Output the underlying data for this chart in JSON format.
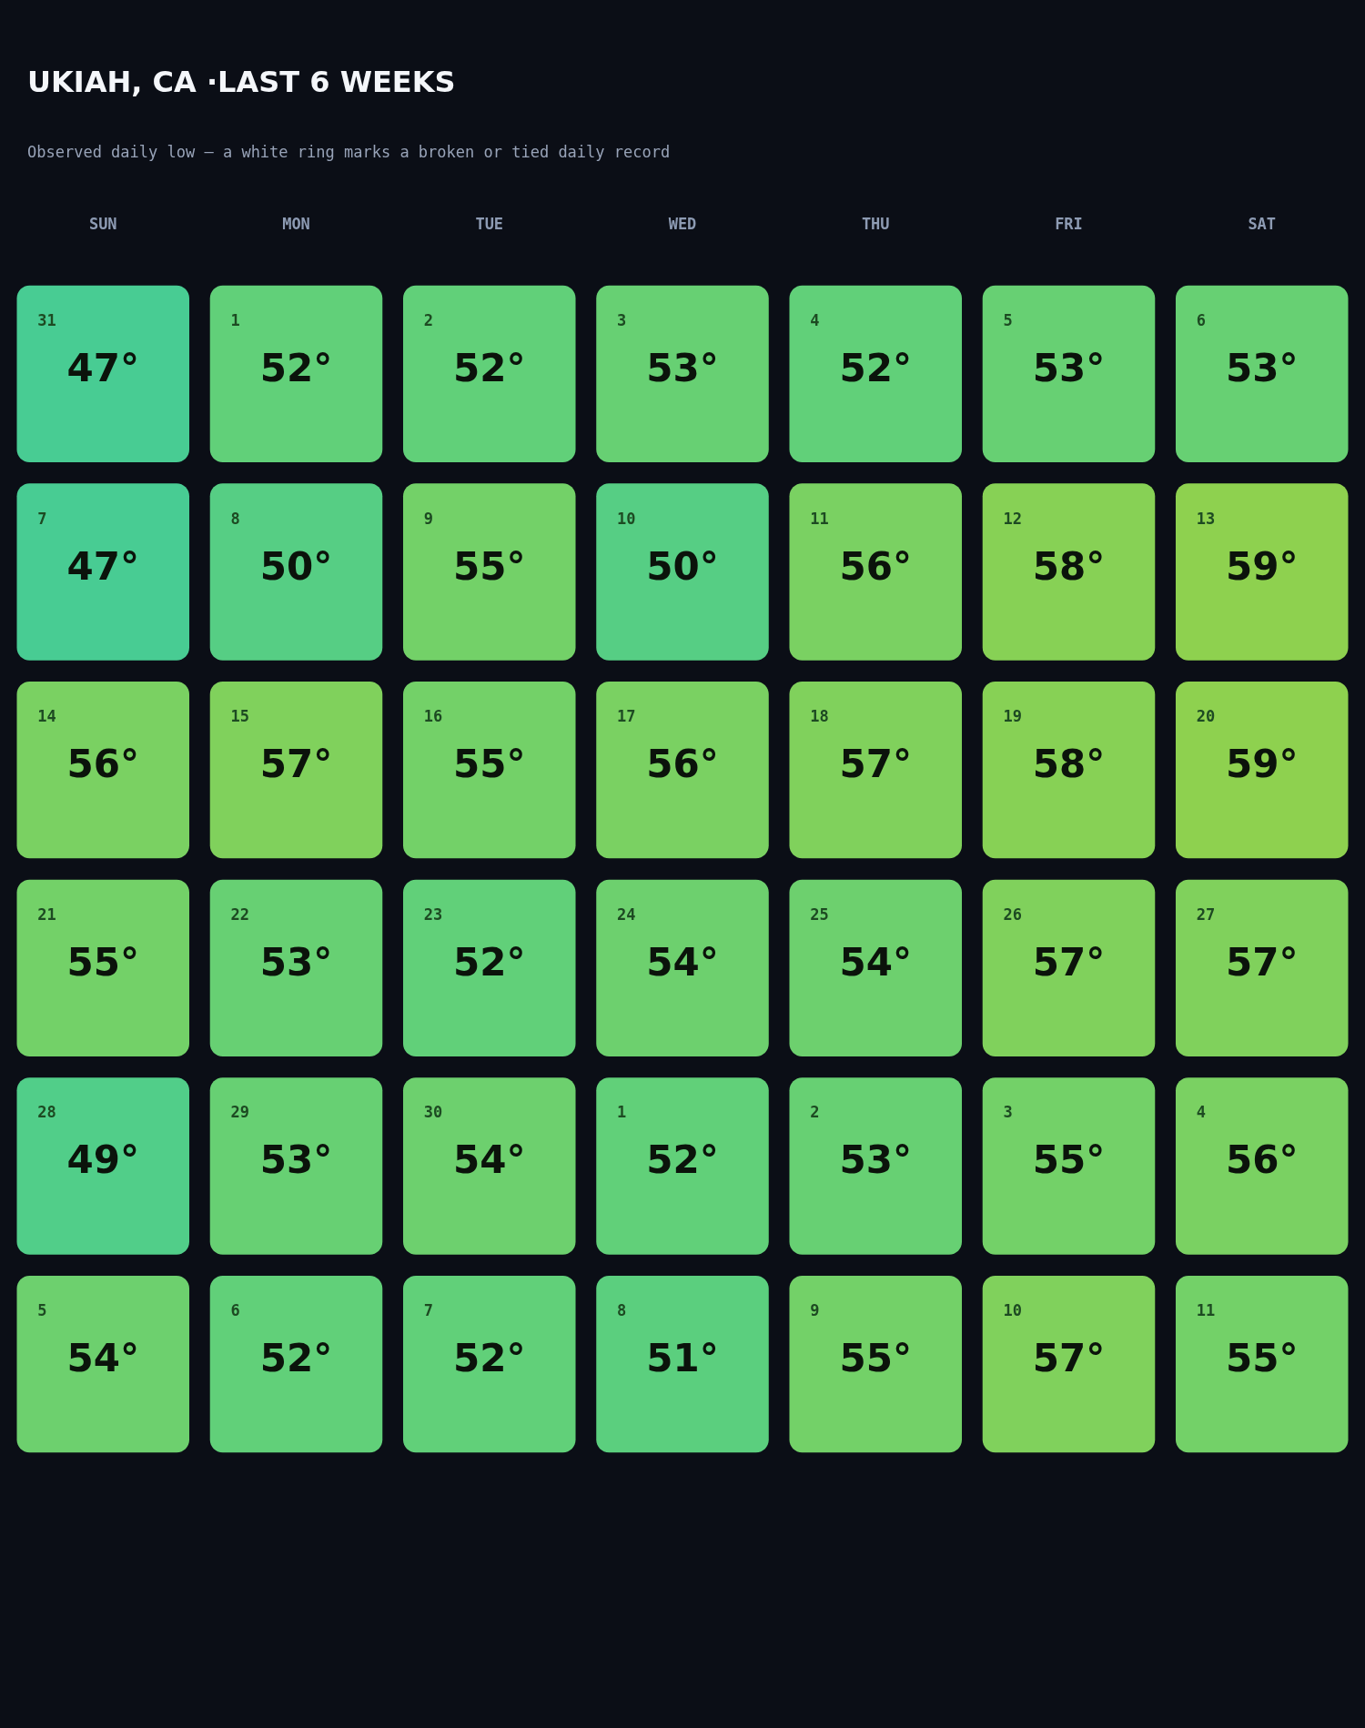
{
  "chart_data": {
    "type": "heatmap",
    "title": "UKIAH, CA ·LAST 6 WEEKS",
    "subtitle": "Observed daily low — a white ring marks a broken or tied daily record",
    "categories": [
      "SUN",
      "MON",
      "TUE",
      "WED",
      "THU",
      "FRI",
      "SAT"
    ],
    "y_categories": [
      null,
      null,
      null,
      null,
      null,
      null
    ],
    "colors": [
      "#48cc93",
      "#8ed14f"
    ],
    "cells": [
      [
        47,
        52,
        52,
        53,
        52,
        53,
        53
      ],
      [
        47,
        50,
        55,
        50,
        56,
        58,
        59
      ],
      [
        56,
        57,
        55,
        56,
        57,
        58,
        59
      ],
      [
        55,
        53,
        52,
        54,
        54,
        57,
        57
      ],
      [
        49,
        53,
        54,
        52,
        53,
        55,
        56
      ],
      [
        54,
        52,
        52,
        51,
        55,
        57,
        55
      ]
    ],
    "cell_labels": [
      [
        "47°",
        "52°",
        "52°",
        "53°",
        "52°",
        "53°",
        "53°"
      ],
      [
        "47°",
        "50°",
        "55°",
        "50°",
        "56°",
        "58°",
        "59°"
      ],
      [
        "56°",
        "57°",
        "55°",
        "56°",
        "57°",
        "58°",
        "59°"
      ],
      [
        "55°",
        "53°",
        "52°",
        "54°",
        "54°",
        "57°",
        "57°"
      ],
      [
        "49°",
        "53°",
        "54°",
        "52°",
        "53°",
        "55°",
        "56°"
      ],
      [
        "54°",
        "52°",
        "52°",
        "51°",
        "55°",
        "57°",
        "55°"
      ]
    ],
    "annotations": [
      "31",
      "1",
      "2",
      "3",
      "4",
      "5",
      "6",
      "7",
      "8",
      "9",
      "10",
      "11",
      "12",
      "13",
      "14",
      "15",
      "16",
      "17",
      "18",
      "19",
      "20",
      "21",
      "22",
      "23",
      "24",
      "25",
      "26",
      "27",
      "28",
      "29",
      "30",
      "1",
      "2",
      "3",
      "4",
      "5",
      "6",
      "7",
      "8",
      "9",
      "10",
      "11"
    ]
  }
}
